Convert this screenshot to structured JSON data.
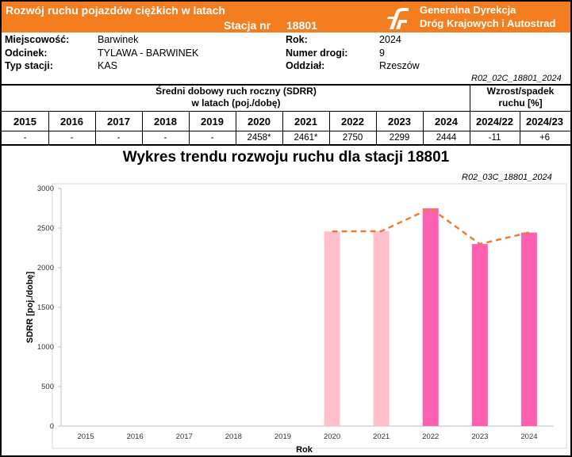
{
  "header": {
    "title": "Rozwój ruchu pojazdów ciężkich w latach",
    "station_label": "Stacja nr",
    "station_number": "18801",
    "org_line1": "Generalna Dyrekcja",
    "org_line2": "Dróg Krajowych i Autostrad",
    "color": "#f47d20"
  },
  "info": {
    "miejscowosc_label": "Miejscowość:",
    "miejscowosc": "Barwinek",
    "odcinek_label": "Odcinek:",
    "odcinek": "TYLAWA - BARWINEK",
    "typ_label": "Typ stacji:",
    "typ": "KAS",
    "rok_label": "Rok:",
    "rok": "2024",
    "numer_label": "Numer drogi:",
    "numer": "9",
    "oddzial_label": "Oddział:",
    "oddzial": "Rzeszów",
    "code1": "R02_02C_18801_2024"
  },
  "table": {
    "sdrr_line1": "Średni dobowy ruch roczny (SDRR)",
    "sdrr_line2": "w latach (poj./dobę)",
    "growth_line1": "Wzrost/spadek",
    "growth_line2": "ruchu [%]",
    "years": [
      "2015",
      "2016",
      "2017",
      "2018",
      "2019",
      "2020",
      "2021",
      "2022",
      "2023",
      "2024"
    ],
    "values": [
      "-",
      "-",
      "-",
      "-",
      "-",
      "2458*",
      "2461*",
      "2750",
      "2299",
      "2444"
    ],
    "growth_headers": [
      "2024/22",
      "2024/23"
    ],
    "growth_values": [
      "-11",
      "+6"
    ]
  },
  "chart": {
    "title": "Wykres trendu rozwoju ruchu dla stacji 18801",
    "code": "R02_03C_18801_2024"
  },
  "chart_data": {
    "type": "bar",
    "categories": [
      "2015",
      "2016",
      "2017",
      "2018",
      "2019",
      "2020",
      "2021",
      "2022",
      "2023",
      "2024"
    ],
    "values": [
      null,
      null,
      null,
      null,
      null,
      2458,
      2461,
      2750,
      2299,
      2444
    ],
    "xlabel": "Rok",
    "ylabel": "SDRR [poj./dobę]",
    "ylim": [
      0,
      3000
    ],
    "yticks": [
      0,
      500,
      1000,
      1500,
      2000,
      2500,
      3000
    ],
    "bar_colors": [
      "#ffc0cb",
      "#ffc0cb",
      "#ffc0cb",
      "#ffc0cb",
      "#ffc0cb",
      "#ffc0cb",
      "#ffc0cb",
      "#ff5fb0",
      "#ff5fb0",
      "#ff5fb0"
    ],
    "trend_line": {
      "values": [
        null,
        null,
        null,
        null,
        null,
        2458,
        2461,
        2750,
        2299,
        2444
      ],
      "color": "#ed7d31",
      "style": "dashed"
    },
    "grid": false
  }
}
